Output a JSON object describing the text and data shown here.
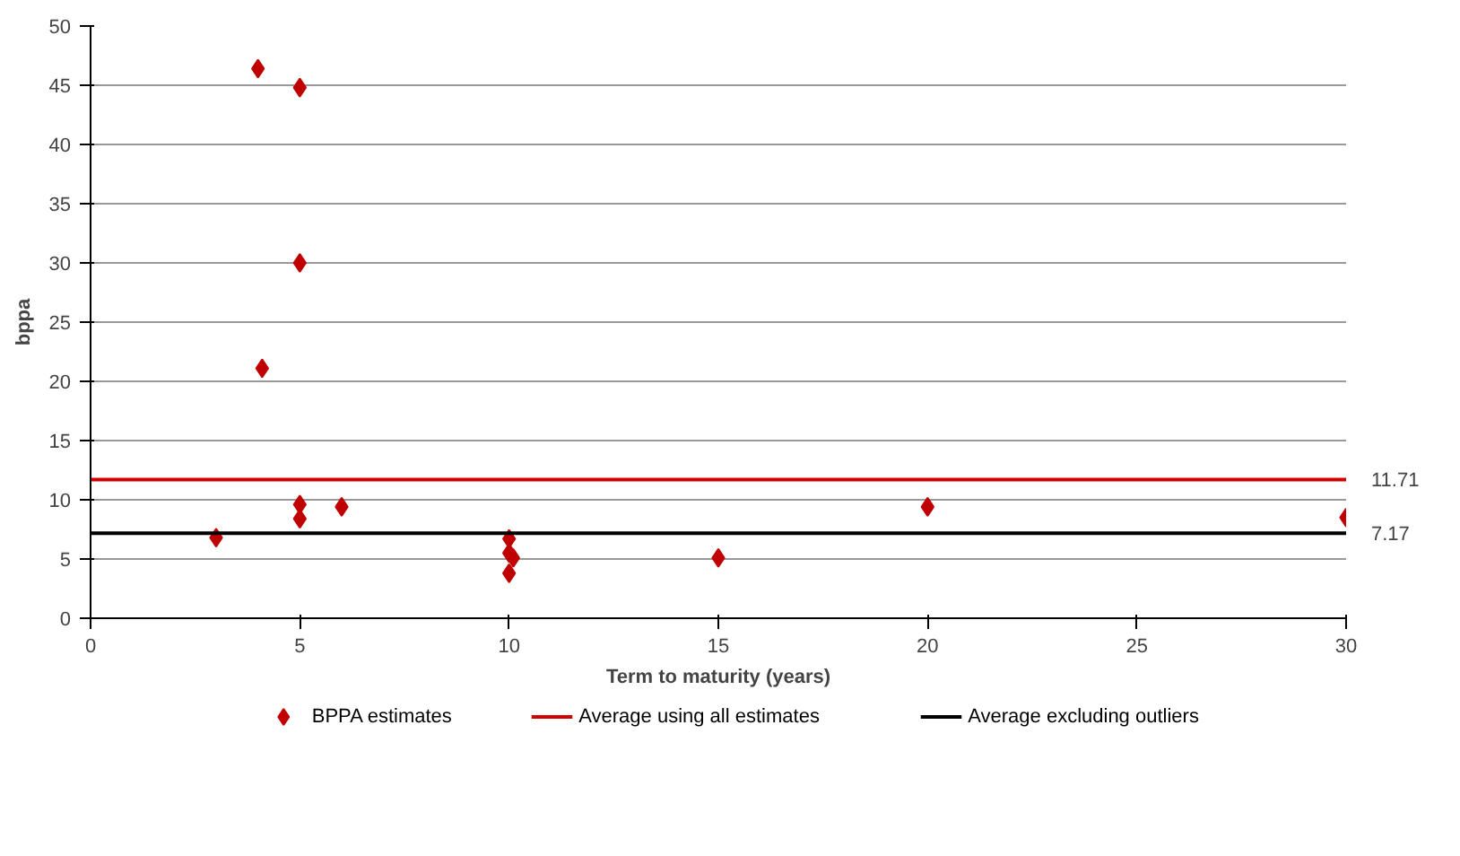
{
  "chart_data": {
    "type": "scatter",
    "xlabel": "Term to maturity (years)",
    "ylabel": "bppa",
    "x": [
      3,
      4,
      4.1,
      5,
      5,
      5,
      5,
      6,
      10,
      10,
      10.1,
      10,
      15,
      20,
      30
    ],
    "series": [
      {
        "name": "BPPA estimates",
        "color": "#c00000",
        "values": [
          6.8,
          46.4,
          21.1,
          44.8,
          30,
          9.6,
          8.4,
          9.4,
          6.7,
          5.5,
          5.1,
          3.8,
          5.1,
          9.4,
          8.5
        ]
      }
    ],
    "ref_lines": [
      {
        "axis": "y",
        "value": 11.71,
        "label": "Average using all estimates",
        "color": "#d00000"
      },
      {
        "axis": "y",
        "value": 7.17,
        "label": "Average excluding outliers",
        "color": "#000000"
      }
    ],
    "annotations": [
      {
        "text": "11.71",
        "x": 30,
        "y": 11.71
      },
      {
        "text": "7.17",
        "x": 30,
        "y": 7.17
      }
    ],
    "xlim": [
      0,
      30
    ],
    "xticks": [
      0,
      5,
      10,
      15,
      20,
      25,
      30
    ],
    "ylim": [
      0,
      50
    ],
    "yticks": [
      0,
      5,
      10,
      15,
      20,
      25,
      30,
      35,
      40,
      45,
      50
    ],
    "grid": "y",
    "legend": "bottom",
    "marker": "diamond"
  }
}
